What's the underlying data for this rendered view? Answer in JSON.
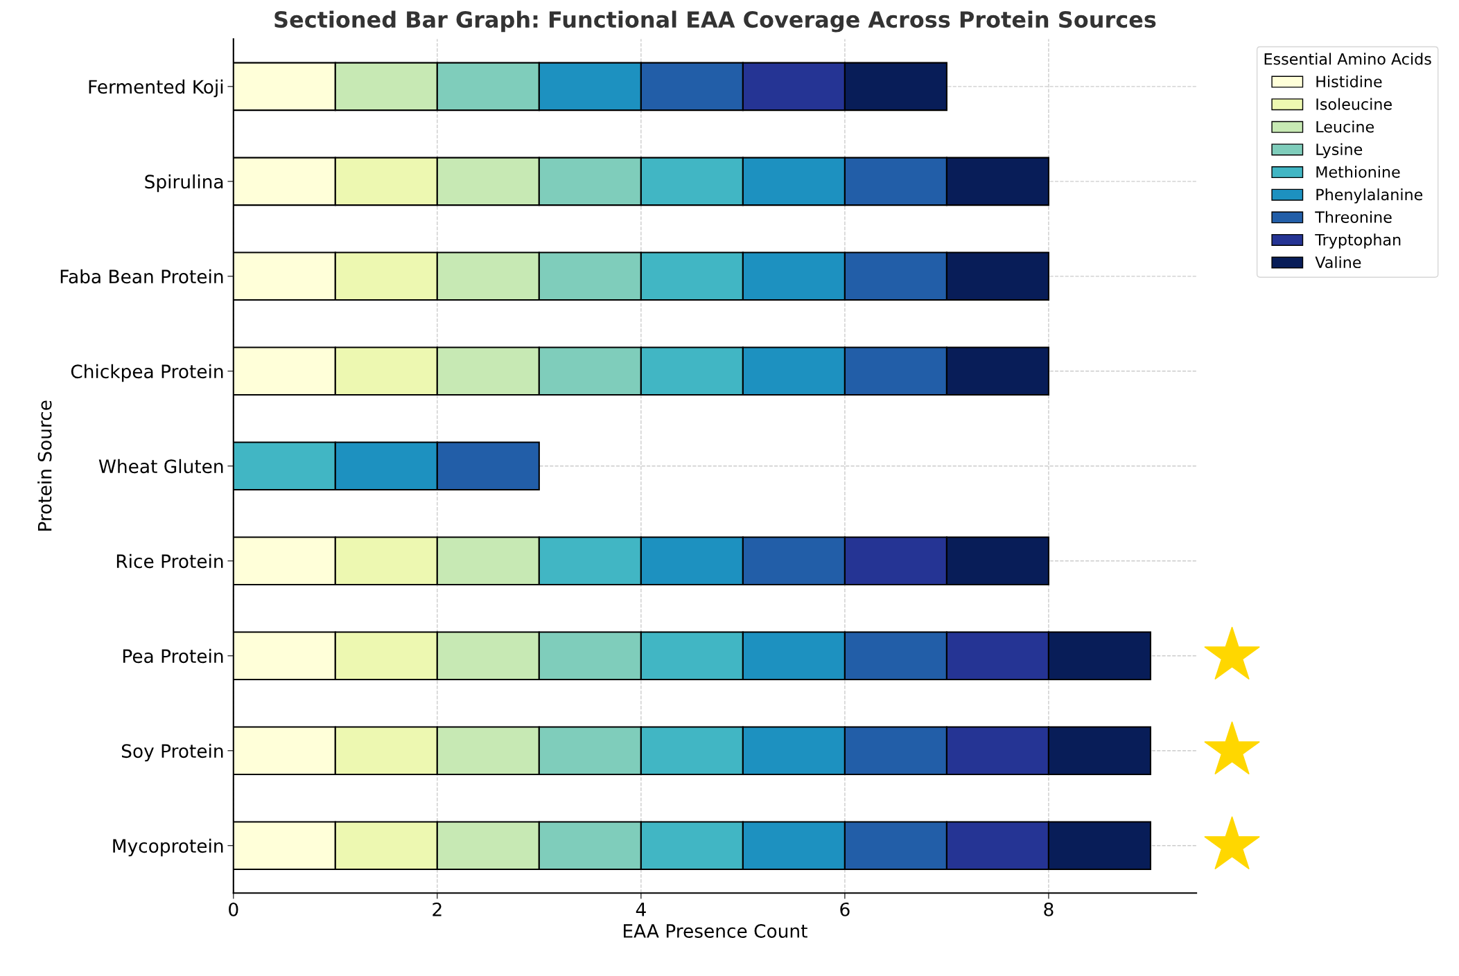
{
  "chart_data": {
    "type": "bar",
    "orientation": "horizontal",
    "stacked": true,
    "title": "Sectioned Bar Graph: Functional EAA Coverage Across Protein Sources",
    "xlabel": "EAA Presence Count",
    "ylabel": "Protein Source",
    "legend_title": "Essential Amino Acids",
    "categories": [
      "Fermented Koji",
      "Spirulina",
      "Faba Bean Protein",
      "Chickpea Protein",
      "Wheat Gluten",
      "Rice Protein",
      "Pea Protein",
      "Soy Protein",
      "Mycoprotein"
    ],
    "series": [
      {
        "name": "Histidine",
        "color": "#ffffd9",
        "values": [
          1,
          1,
          1,
          1,
          0,
          1,
          1,
          1,
          1
        ]
      },
      {
        "name": "Isoleucine",
        "color": "#edf8b1",
        "values": [
          0,
          1,
          1,
          1,
          0,
          1,
          1,
          1,
          1
        ]
      },
      {
        "name": "Leucine",
        "color": "#c7e9b4",
        "values": [
          1,
          1,
          1,
          1,
          0,
          1,
          1,
          1,
          1
        ]
      },
      {
        "name": "Lysine",
        "color": "#7fcdbb",
        "values": [
          1,
          1,
          1,
          1,
          0,
          0,
          1,
          1,
          1
        ]
      },
      {
        "name": "Methionine",
        "color": "#41b6c4",
        "values": [
          0,
          1,
          1,
          1,
          1,
          1,
          1,
          1,
          1
        ]
      },
      {
        "name": "Phenylalanine",
        "color": "#1d91c0",
        "values": [
          1,
          1,
          1,
          1,
          1,
          1,
          1,
          1,
          1
        ]
      },
      {
        "name": "Threonine",
        "color": "#225ea8",
        "values": [
          1,
          1,
          1,
          1,
          1,
          1,
          1,
          1,
          1
        ]
      },
      {
        "name": "Tryptophan",
        "color": "#253494",
        "values": [
          1,
          0,
          0,
          0,
          0,
          1,
          1,
          1,
          1
        ]
      },
      {
        "name": "Valine",
        "color": "#081d58",
        "values": [
          1,
          1,
          1,
          1,
          0,
          1,
          1,
          1,
          1
        ]
      }
    ],
    "xlim": [
      0,
      9.45
    ],
    "xticks": [
      0,
      2,
      4,
      6,
      8
    ],
    "grid": true,
    "legend": "top right"
  }
}
